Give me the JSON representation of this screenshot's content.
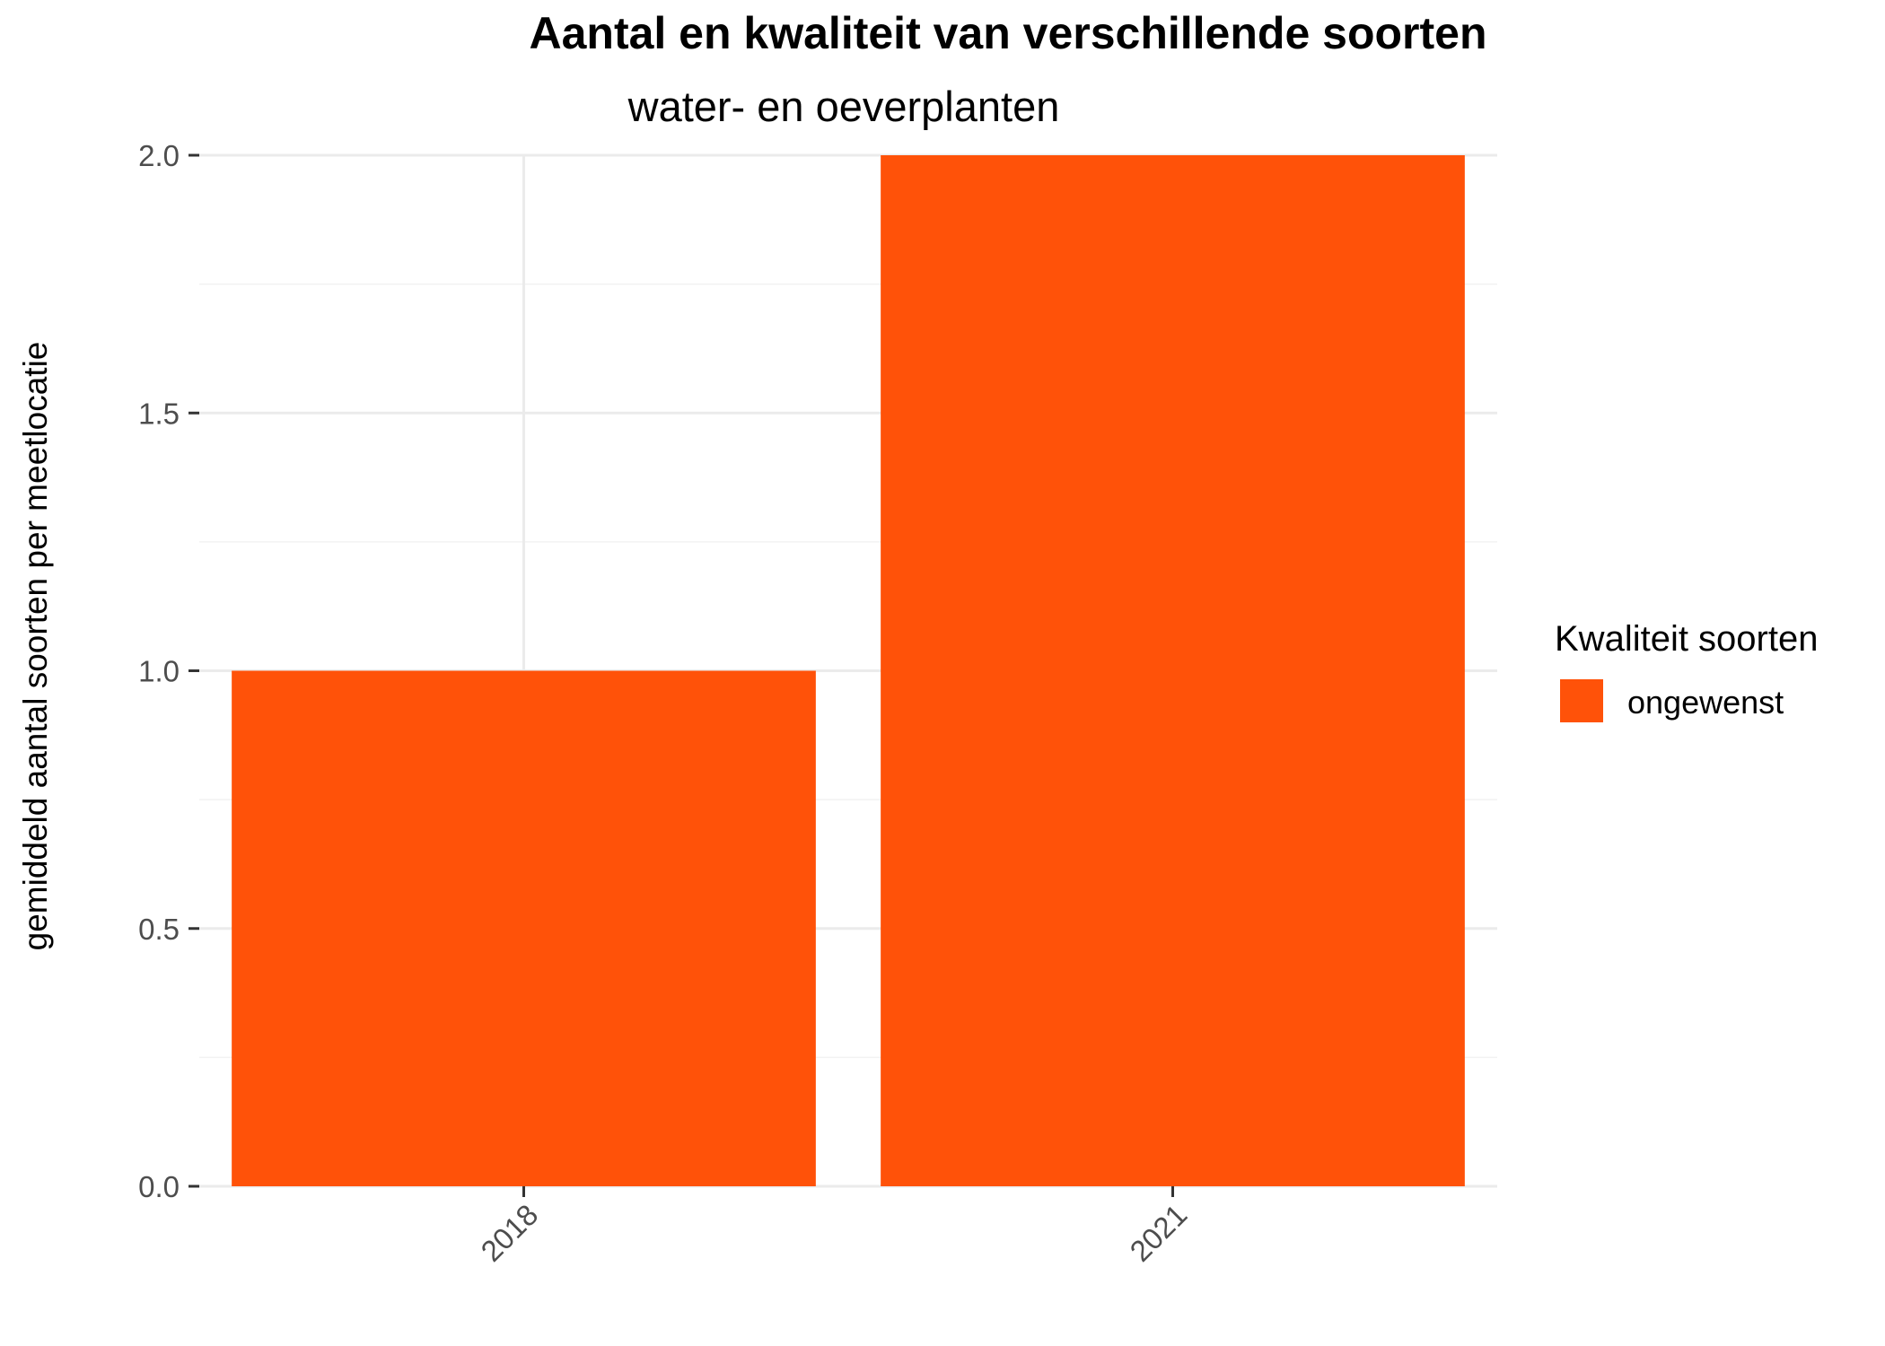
{
  "chart_data": {
    "type": "bar",
    "title": "Aantal en kwaliteit van verschillende soorten",
    "subtitle": "water- en oeverplanten",
    "xlabel": "",
    "ylabel": "gemiddeld aantal soorten per meetlocatie",
    "categories": [
      "2018",
      "2021"
    ],
    "series": [
      {
        "name": "ongewenst",
        "values": [
          1.0,
          2.0
        ],
        "color": "#FF5209"
      }
    ],
    "ylim": [
      0,
      2
    ],
    "yticks": [
      0.0,
      0.5,
      1.0,
      1.5,
      2.0
    ],
    "ytick_labels": [
      "0.0",
      "0.5",
      "1.0",
      "1.5",
      "2.0"
    ],
    "x_tick_rotation_deg": 45,
    "grid": true,
    "legend": {
      "title": "Kwaliteit soorten",
      "position": "right"
    }
  }
}
